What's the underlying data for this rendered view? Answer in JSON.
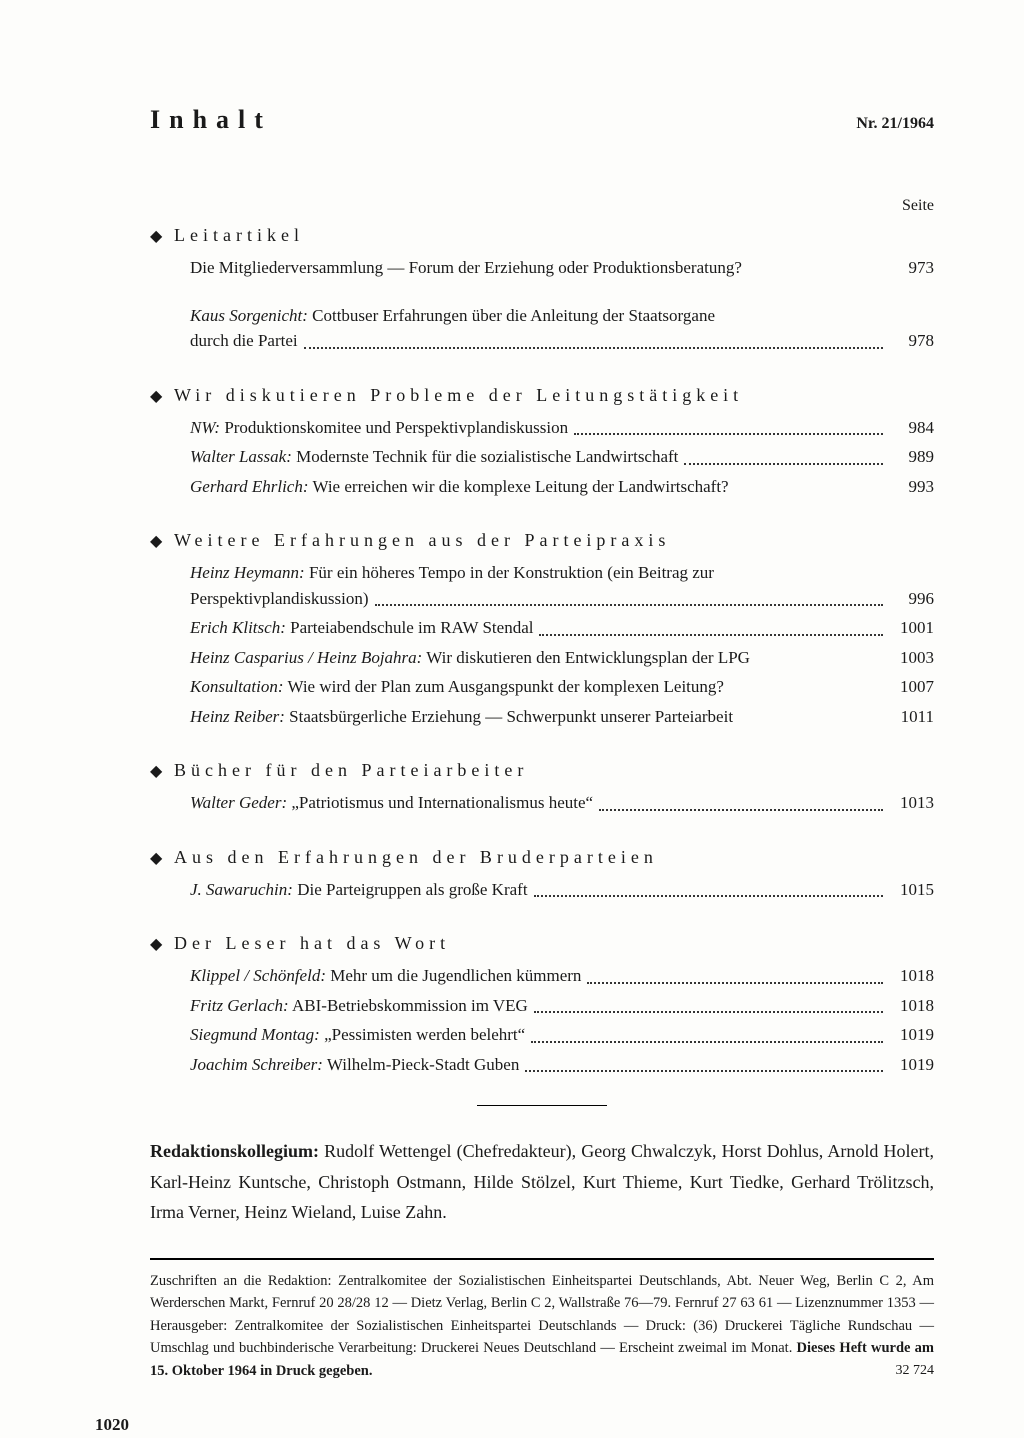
{
  "header": {
    "title": "Inhalt",
    "issue": "Nr. 21/1964",
    "seite_label": "Seite"
  },
  "sections": [
    {
      "title": "Leitartikel",
      "entries": [
        {
          "author": "",
          "text": "Die Mitgliederversammlung — Forum der Erziehung oder Produktionsberatung?",
          "page": "973",
          "nodots": true
        },
        {
          "author": "Kaus Sorgenicht:",
          "text": " Cottbuser Erfahrungen über die Anleitung der Staatsorgane",
          "text2": "durch die Partei",
          "page": "978",
          "multiline": true
        }
      ]
    },
    {
      "title": "Wir diskutieren Probleme der Leitungstätigkeit",
      "entries": [
        {
          "author": "NW:",
          "text": " Produktionskomitee und Perspektivplandiskussion",
          "page": "984"
        },
        {
          "author": "Walter Lassak:",
          "text": " Modernste Technik für die sozialistische Landwirtschaft",
          "page": "989"
        },
        {
          "author": "Gerhard Ehrlich:",
          "text": " Wie erreichen wir die komplexe Leitung der Landwirtschaft?",
          "page": "993",
          "nodots": true
        }
      ]
    },
    {
      "title": "Weitere Erfahrungen aus der Parteipraxis",
      "entries": [
        {
          "author": "Heinz Heymann:",
          "text": " Für ein höheres Tempo in der Konstruktion (ein Beitrag zur",
          "text2": "Perspektivplandiskussion)",
          "page": "996",
          "multiline": true
        },
        {
          "author": "Erich Klitsch:",
          "text": " Parteiabendschule im RAW Stendal",
          "page": "1001"
        },
        {
          "author": "Heinz Casparius / Heinz Bojahra:",
          "text": " Wir diskutieren den Entwicklungsplan der LPG",
          "page": "1003",
          "nodots": true
        },
        {
          "author": "Konsultation:",
          "text": " Wie wird der Plan zum Ausgangspunkt der komplexen Leitung?",
          "page": "1007",
          "nodots": true
        },
        {
          "author": "Heinz Reiber:",
          "text": " Staatsbürgerliche Erziehung — Schwerpunkt unserer Parteiarbeit",
          "page": "1011",
          "nodots": true
        }
      ]
    },
    {
      "title": "Bücher für den Parteiarbeiter",
      "entries": [
        {
          "author": "Walter Geder:",
          "text": " „Patriotismus und Internationalismus heute“",
          "page": "1013"
        }
      ]
    },
    {
      "title": "Aus den Erfahrungen der Bruderparteien",
      "entries": [
        {
          "author": "J. Sawaruchin:",
          "text": " Die Parteigruppen als große Kraft",
          "page": "1015"
        }
      ]
    },
    {
      "title": "Der Leser hat das Wort",
      "entries": [
        {
          "author": "Klippel / Schönfeld:",
          "text": " Mehr um die Jugendlichen kümmern",
          "page": "1018"
        },
        {
          "author": "Fritz Gerlach:",
          "text": " ABI-Betriebskommission im VEG",
          "page": "1018"
        },
        {
          "author": "Siegmund Montag:",
          "text": " „Pessimisten werden belehrt“",
          "page": "1019"
        },
        {
          "author": "Joachim Schreiber:",
          "text": " Wilhelm-Pieck-Stadt Guben",
          "page": "1019"
        }
      ]
    }
  ],
  "redaktion": {
    "label": "Redaktionskollegium:",
    "text": " Rudolf Wettengel (Chefredakteur), Georg Chwalczyk, Horst Dohlus, Arnold Holert, Karl-Heinz Kuntsche, Christoph Ostmann, Hilde Stölzel, Kurt Thieme, Kurt Tiedke, Gerhard Trölitzsch, Irma Verner, Heinz Wieland, Luise Zahn."
  },
  "imprint": {
    "text": "Zuschriften an die Redaktion: Zentralkomitee der Sozialistischen Einheitspartei Deutschlands, Abt. Neuer Weg, Berlin C 2, Am Werderschen Markt, Fernruf 20 28/28 12 — Dietz Verlag, Berlin C 2, Wallstraße 76—79. Fernruf 27 63 61 — Lizenznummer 1353 — Herausgeber: Zentralkomitee der Sozialistischen Einheitspartei Deutschlands — Druck: (36) Druckerei Tägliche Rundschau — Umschlag und buchbinderische Verarbeitung: Druckerei Neues Deutschland — Erscheint zweimal im Monat. ",
    "bold": "Dieses Heft wurde am 15. Oktober 1964 in Druck gegeben.",
    "num": "32 724"
  },
  "page_number": "1020"
}
